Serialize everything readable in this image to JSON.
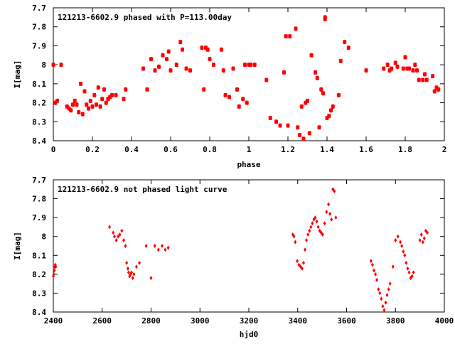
{
  "chart_data": [
    {
      "type": "scatter",
      "title": "121213-6602.9 phased with P=113.00day",
      "xlabel": "phase",
      "ylabel": "I[mag]",
      "xlim": [
        0,
        2
      ],
      "ylim": [
        8.4,
        7.7
      ],
      "y_inverted": true,
      "xticks": [
        "0",
        "0.2",
        "0.4",
        "0.6",
        "0.8",
        "1",
        "1.2",
        "1.4",
        "1.6",
        "1.8",
        "2"
      ],
      "yticks": [
        "7.7",
        "7.8",
        "7.9",
        "8",
        "8.1",
        "8.2",
        "8.3",
        "8.4"
      ],
      "marker": "filled-circle",
      "marker_color": "#ff0000",
      "grid": false,
      "series": [
        {
          "x": [
            0.0,
            0.01,
            0.02,
            0.04,
            0.07,
            0.08,
            0.09,
            0.1,
            0.11,
            0.12,
            0.13,
            0.14,
            0.15,
            0.16,
            0.17,
            0.18,
            0.19,
            0.2,
            0.21,
            0.22,
            0.23,
            0.24,
            0.25,
            0.26,
            0.27,
            0.28,
            0.29,
            0.3,
            0.32,
            0.36,
            0.37,
            0.46,
            0.48,
            0.5,
            0.52,
            0.54,
            0.56,
            0.58,
            0.59,
            0.6,
            0.63,
            0.65,
            0.66,
            0.68,
            0.7,
            0.76,
            0.77,
            0.78,
            0.79,
            0.8,
            0.82,
            0.86,
            0.87,
            0.88,
            0.9,
            0.92,
            0.94,
            0.95,
            0.97,
            0.98,
            0.99,
            1.0,
            1.01,
            1.03,
            1.09,
            1.11,
            1.14,
            1.16,
            1.18,
            1.19,
            1.2,
            1.21,
            1.24,
            1.25,
            1.26,
            1.27,
            1.28,
            1.29,
            1.3,
            1.31,
            1.32,
            1.34,
            1.35,
            1.36,
            1.37,
            1.38,
            1.39,
            1.39,
            1.4,
            1.41,
            1.42,
            1.43,
            1.46,
            1.47,
            1.49,
            1.51,
            1.6,
            1.69,
            1.71,
            1.72,
            1.73,
            1.75,
            1.76,
            1.79,
            1.8,
            1.81,
            1.82,
            1.84,
            1.85,
            1.86,
            1.87,
            1.89,
            1.9,
            1.91,
            1.94,
            1.95,
            1.96,
            1.97
          ],
          "y": [
            8.0,
            8.2,
            8.19,
            8.0,
            8.22,
            8.23,
            8.24,
            8.21,
            8.19,
            8.21,
            8.25,
            8.1,
            8.26,
            8.14,
            8.21,
            8.23,
            8.19,
            8.22,
            8.16,
            8.21,
            8.12,
            8.22,
            8.18,
            8.13,
            8.2,
            8.18,
            8.17,
            8.16,
            8.16,
            8.18,
            8.13,
            8.02,
            8.13,
            7.97,
            8.03,
            8.01,
            7.95,
            7.97,
            7.93,
            8.03,
            8.0,
            7.88,
            7.92,
            8.02,
            8.03,
            7.91,
            8.13,
            7.91,
            7.92,
            7.97,
            8.0,
            7.92,
            8.03,
            8.16,
            8.17,
            8.02,
            8.13,
            8.22,
            8.18,
            8.0,
            8.2,
            8.0,
            8.0,
            8.0,
            8.08,
            8.28,
            8.3,
            8.32,
            8.04,
            7.85,
            8.32,
            7.85,
            7.81,
            8.33,
            8.37,
            8.22,
            8.39,
            8.2,
            8.19,
            8.36,
            7.95,
            8.04,
            8.07,
            8.33,
            8.13,
            8.15,
            7.76,
            7.75,
            8.28,
            8.27,
            8.24,
            8.22,
            8.16,
            7.98,
            7.88,
            7.91,
            8.03,
            8.02,
            8.0,
            8.03,
            8.02,
            7.99,
            8.01,
            8.02,
            7.96,
            8.02,
            8.02,
            8.03,
            8.0,
            8.03,
            8.08,
            8.08,
            8.05,
            8.08,
            8.06,
            8.14,
            8.12,
            8.13
          ]
        }
      ]
    },
    {
      "type": "scatter",
      "title": "121213-6602.9 not phased light curve",
      "xlabel": "hjd0",
      "ylabel": "I[mag]",
      "xlim": [
        2400,
        4000
      ],
      "ylim": [
        8.4,
        7.7
      ],
      "y_inverted": true,
      "xticks": [
        "2400",
        "2600",
        "2800",
        "3000",
        "3200",
        "3400",
        "3600",
        "3800",
        "4000"
      ],
      "yticks": [
        "7.7",
        "7.8",
        "7.9",
        "8",
        "8.1",
        "8.2",
        "8.3",
        "8.4"
      ],
      "marker": "filled-diamond",
      "marker_color": "#ff0000",
      "grid": false,
      "series": [
        {
          "x": [
            2400,
            2402,
            2404,
            2406,
            2408,
            2410,
            2630,
            2645,
            2650,
            2658,
            2665,
            2672,
            2680,
            2688,
            2695,
            2700,
            2705,
            2708,
            2712,
            2716,
            2720,
            2725,
            2730,
            2740,
            2752,
            2780,
            2800,
            2815,
            2830,
            2845,
            2858,
            2870,
            3380,
            3385,
            3390,
            3398,
            3405,
            3412,
            3418,
            3424,
            3430,
            3436,
            3442,
            3448,
            3454,
            3460,
            3466,
            3472,
            3478,
            3484,
            3490,
            3496,
            3502,
            3510,
            3518,
            3526,
            3532,
            3538,
            3544,
            3550,
            3556,
            3700,
            3706,
            3712,
            3718,
            3724,
            3730,
            3736,
            3742,
            3748,
            3754,
            3760,
            3766,
            3772,
            3778,
            3790,
            3800,
            3810,
            3820,
            3826,
            3832,
            3838,
            3844,
            3850,
            3856,
            3862,
            3868,
            3874,
            3900,
            3906,
            3912,
            3918,
            3924,
            3930
          ],
          "y": [
            8.21,
            8.2,
            8.18,
            8.16,
            8.15,
            8.16,
            7.95,
            7.98,
            8.0,
            8.02,
            8.0,
            7.99,
            7.97,
            8.02,
            8.05,
            8.14,
            8.17,
            8.19,
            8.21,
            8.2,
            8.19,
            8.22,
            8.2,
            8.16,
            8.14,
            8.05,
            8.22,
            8.05,
            8.07,
            8.05,
            8.07,
            8.06,
            7.99,
            8.0,
            8.03,
            8.13,
            8.15,
            8.16,
            8.17,
            8.14,
            8.07,
            8.02,
            7.99,
            7.97,
            7.95,
            7.93,
            7.91,
            7.9,
            7.92,
            7.95,
            7.97,
            7.98,
            7.99,
            7.93,
            7.87,
            7.83,
            7.88,
            7.91,
            7.75,
            7.76,
            7.9,
            8.13,
            8.15,
            8.18,
            8.2,
            8.23,
            8.28,
            8.3,
            8.33,
            8.37,
            8.39,
            8.35,
            8.31,
            8.28,
            8.25,
            8.16,
            8.02,
            8.0,
            8.03,
            8.05,
            8.08,
            8.1,
            8.14,
            8.17,
            8.19,
            8.22,
            8.21,
            8.19,
            8.02,
            7.99,
            8.03,
            8.01,
            7.97,
            7.98
          ]
        }
      ]
    }
  ]
}
